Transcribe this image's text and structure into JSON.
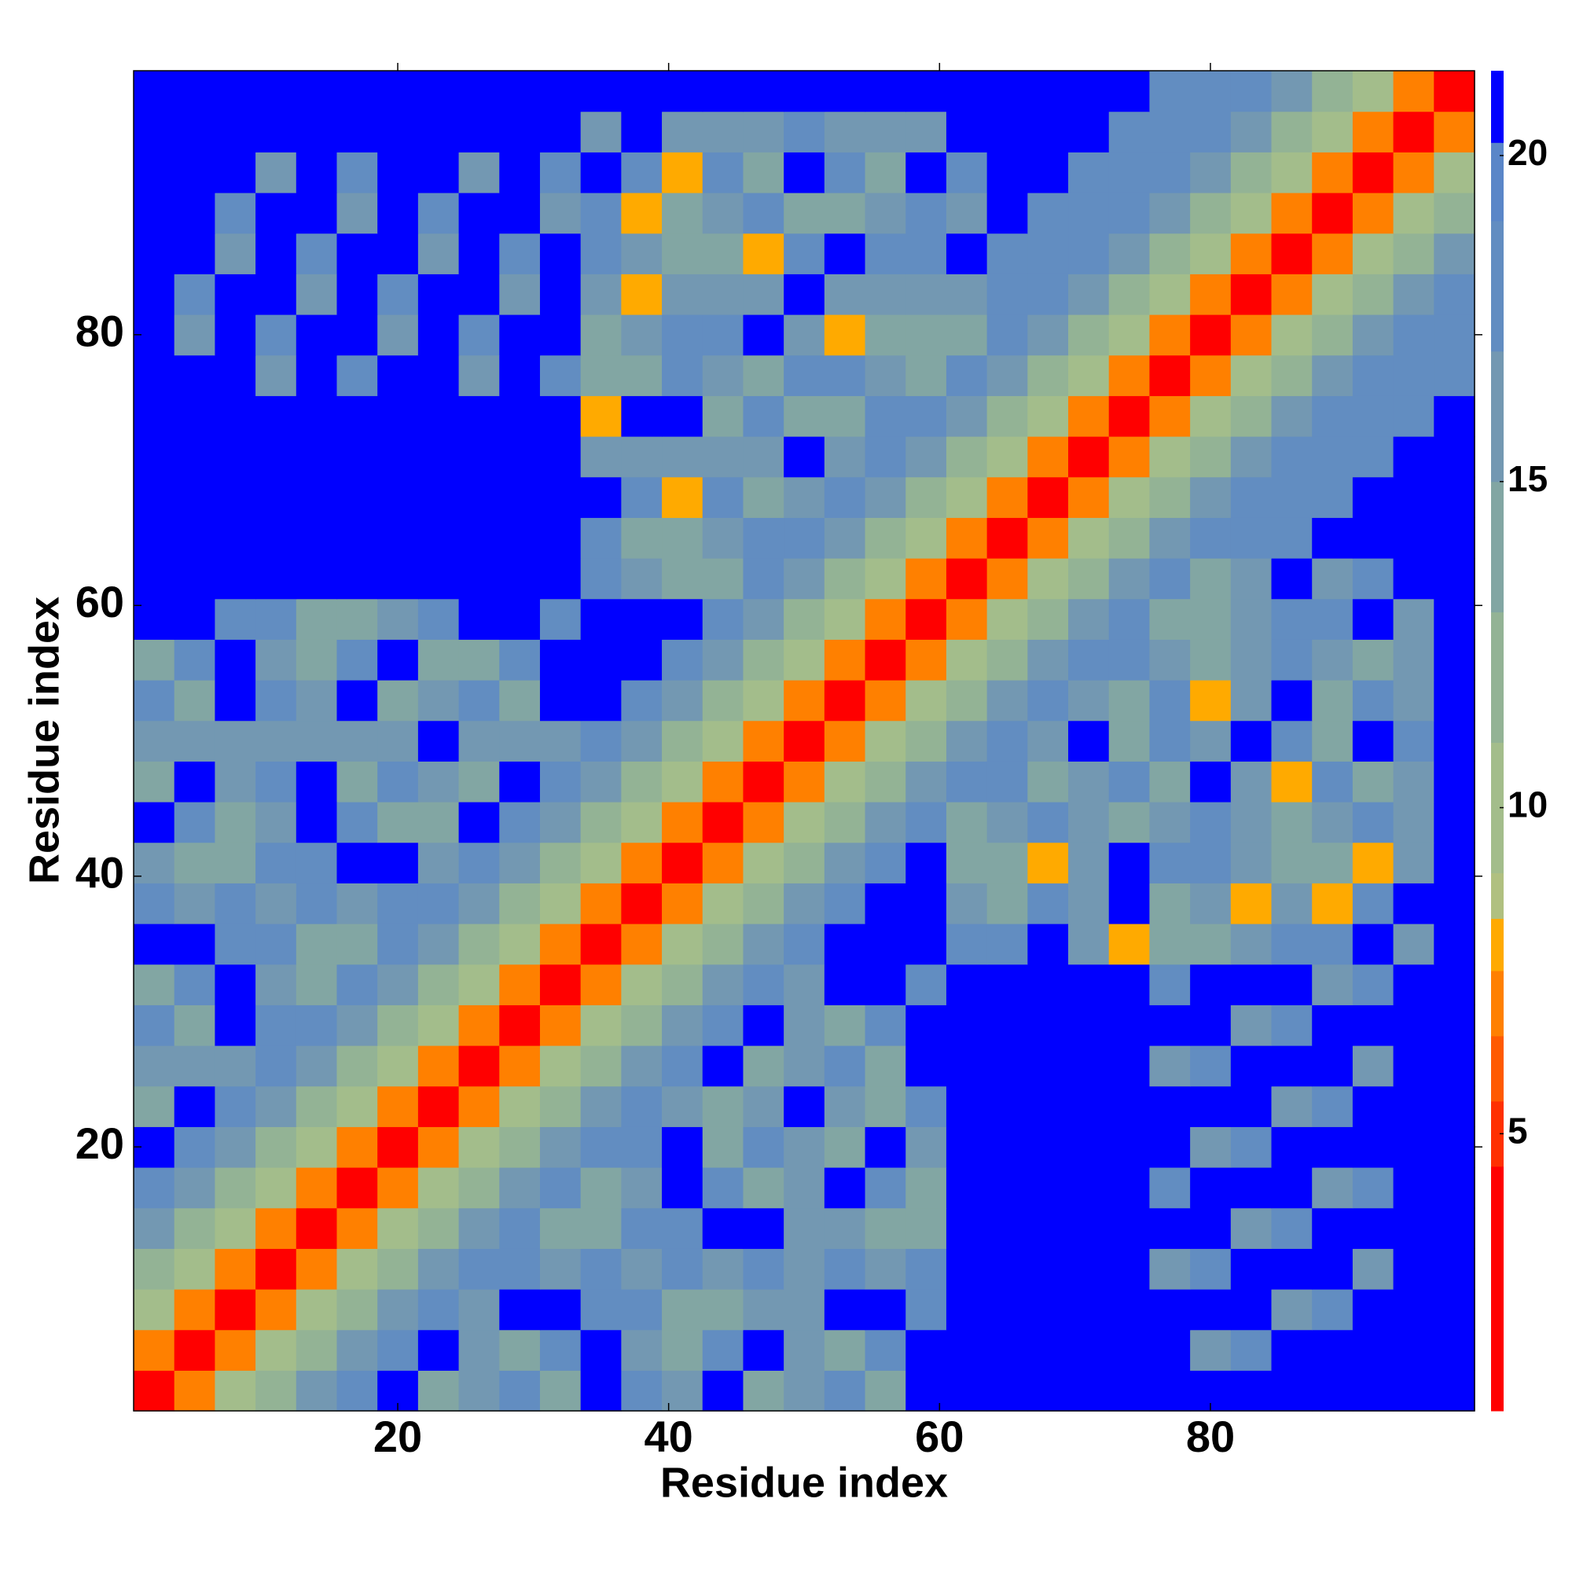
{
  "chart_data": {
    "type": "heatmap",
    "x_label": "Residue index",
    "y_label": "Residue index",
    "xlim": [
      0.5,
      99.5
    ],
    "ylim": [
      0.5,
      99.5
    ],
    "xticks": [
      20,
      40,
      60,
      80
    ],
    "yticks": [
      20,
      40,
      60,
      80
    ],
    "x_edges": [
      0.5,
      3.5,
      6.5,
      9.5,
      12.5,
      15.5,
      18.5,
      21.5,
      24.5,
      27.5,
      30.5,
      33.5,
      36.5,
      39.5,
      42.5,
      45.5,
      48.5,
      51.5,
      54.5,
      57.5,
      60.5,
      63.5,
      66.5,
      69.5,
      72.5,
      75.5,
      78.5,
      81.5,
      84.5,
      87.5,
      90.5,
      93.5,
      96.5,
      99.5
    ],
    "y_edges": [
      0.5,
      3.5,
      6.5,
      9.5,
      12.5,
      15.5,
      18.5,
      21.5,
      24.5,
      27.5,
      30.5,
      33.5,
      36.5,
      39.5,
      42.5,
      45.5,
      48.5,
      51.5,
      54.5,
      57.5,
      60.5,
      63.5,
      66.5,
      69.5,
      72.5,
      75.5,
      78.5,
      81.5,
      84.5,
      87.5,
      90.5,
      93.5,
      96.5,
      99.5
    ],
    "clim": [
      0.75,
      21.3
    ],
    "cticks": [
      5,
      10,
      15,
      20
    ],
    "levels": [
      0.75,
      4.5,
      5.5,
      6.5,
      7.5,
      8.3,
      9,
      11,
      13,
      15,
      17,
      19,
      20.2,
      21.3
    ],
    "colors": [
      "#ff0000",
      "#ff3000",
      "#ff5a00",
      "#ff8000",
      "#ffaa00",
      "#b0c080",
      "#a3bd8b",
      "#93b395",
      "#82a6a3",
      "#7398b2",
      "#628dc1",
      "#5a86c8",
      "#0000ff"
    ],
    "values": [
      [
        4,
        7,
        10,
        12,
        16,
        18,
        21,
        14,
        16,
        18,
        14,
        21,
        18,
        16,
        21,
        14,
        16,
        18,
        14,
        21,
        21,
        21,
        21,
        21,
        21,
        21,
        21,
        21,
        21,
        21,
        21,
        21,
        21
      ],
      [
        7,
        4,
        7,
        10,
        12,
        16,
        18,
        21,
        16,
        14,
        18,
        21,
        16,
        14,
        18,
        21,
        16,
        14,
        18,
        21,
        21,
        21,
        21,
        21,
        21,
        21,
        16,
        18,
        21,
        21,
        21,
        21,
        21
      ],
      [
        10,
        7,
        4,
        7,
        10,
        12,
        16,
        18,
        16,
        21,
        21,
        18,
        18,
        14,
        14,
        16,
        16,
        21,
        21,
        18,
        21,
        21,
        21,
        21,
        21,
        21,
        21,
        21,
        16,
        18,
        21,
        21,
        21
      ],
      [
        12,
        10,
        7,
        4,
        7,
        10,
        12,
        16,
        18,
        18,
        16,
        18,
        16,
        18,
        16,
        18,
        16,
        18,
        16,
        18,
        21,
        21,
        21,
        21,
        21,
        16,
        18,
        21,
        21,
        21,
        16,
        21,
        21
      ],
      [
        16,
        12,
        10,
        7,
        4,
        7,
        10,
        12,
        16,
        18,
        14,
        14,
        18,
        18,
        21,
        21,
        16,
        16,
        14,
        14,
        21,
        21,
        21,
        21,
        21,
        21,
        21,
        16,
        18,
        21,
        21,
        21,
        21
      ],
      [
        18,
        16,
        12,
        10,
        7,
        4,
        7,
        10,
        12,
        16,
        18,
        14,
        16,
        21,
        18,
        14,
        16,
        21,
        18,
        14,
        21,
        21,
        21,
        21,
        21,
        18,
        21,
        21,
        21,
        16,
        18,
        21,
        21
      ],
      [
        21,
        18,
        16,
        12,
        10,
        7,
        4,
        7,
        10,
        12,
        16,
        18,
        18,
        21,
        14,
        18,
        16,
        14,
        21,
        16,
        21,
        21,
        21,
        21,
        21,
        21,
        16,
        18,
        21,
        21,
        21,
        21,
        21
      ],
      [
        14,
        21,
        18,
        16,
        12,
        10,
        7,
        4,
        7,
        10,
        12,
        16,
        18,
        16,
        14,
        16,
        21,
        16,
        14,
        18,
        21,
        21,
        21,
        21,
        21,
        21,
        21,
        21,
        16,
        18,
        21,
        21,
        21
      ],
      [
        16,
        16,
        16,
        18,
        16,
        12,
        10,
        7,
        4,
        7,
        10,
        12,
        16,
        18,
        21,
        14,
        16,
        18,
        14,
        21,
        21,
        21,
        21,
        21,
        21,
        16,
        18,
        21,
        21,
        21,
        16,
        21,
        21
      ],
      [
        18,
        14,
        21,
        18,
        18,
        16,
        12,
        10,
        7,
        4,
        7,
        10,
        12,
        16,
        18,
        21,
        16,
        14,
        18,
        21,
        21,
        21,
        21,
        21,
        21,
        21,
        21,
        16,
        18,
        21,
        21,
        21,
        21
      ],
      [
        14,
        18,
        21,
        16,
        14,
        18,
        16,
        12,
        10,
        7,
        4,
        7,
        10,
        12,
        16,
        18,
        16,
        21,
        21,
        18,
        21,
        21,
        21,
        21,
        21,
        18,
        21,
        21,
        21,
        16,
        18,
        21,
        21
      ],
      [
        21,
        21,
        18,
        18,
        14,
        14,
        18,
        16,
        12,
        10,
        7,
        4,
        7,
        10,
        12,
        16,
        18,
        21,
        21,
        21,
        18,
        18,
        21,
        16,
        8,
        14,
        14,
        16,
        18,
        18,
        21,
        16,
        21
      ],
      [
        18,
        16,
        18,
        16,
        18,
        16,
        18,
        18,
        16,
        12,
        10,
        7,
        4,
        7,
        10,
        12,
        16,
        18,
        21,
        21,
        16,
        14,
        18,
        16,
        21,
        14,
        16,
        8,
        16,
        8,
        18,
        21,
        21
      ],
      [
        16,
        14,
        14,
        18,
        18,
        21,
        21,
        16,
        18,
        16,
        12,
        10,
        7,
        4,
        7,
        10,
        12,
        16,
        18,
        21,
        14,
        14,
        8,
        16,
        21,
        18,
        18,
        16,
        14,
        14,
        8,
        16,
        21
      ],
      [
        21,
        18,
        14,
        16,
        21,
        18,
        14,
        14,
        21,
        18,
        16,
        12,
        10,
        7,
        4,
        7,
        10,
        12,
        16,
        18,
        14,
        16,
        18,
        16,
        14,
        16,
        18,
        16,
        14,
        16,
        18,
        16,
        21
      ],
      [
        14,
        21,
        16,
        18,
        21,
        14,
        18,
        16,
        14,
        21,
        18,
        16,
        12,
        10,
        7,
        4,
        7,
        10,
        12,
        16,
        18,
        18,
        14,
        16,
        18,
        14,
        21,
        16,
        8,
        18,
        14,
        16,
        21
      ],
      [
        16,
        16,
        16,
        16,
        16,
        16,
        16,
        21,
        16,
        16,
        16,
        18,
        16,
        12,
        10,
        7,
        4,
        7,
        10,
        12,
        16,
        18,
        16,
        21,
        14,
        18,
        16,
        21,
        18,
        14,
        21,
        18,
        21
      ],
      [
        18,
        14,
        21,
        18,
        16,
        21,
        14,
        16,
        18,
        14,
        21,
        21,
        18,
        16,
        12,
        10,
        7,
        4,
        7,
        10,
        12,
        16,
        18,
        16,
        14,
        18,
        8,
        16,
        21,
        14,
        18,
        16,
        21
      ],
      [
        14,
        18,
        21,
        16,
        14,
        18,
        21,
        14,
        14,
        18,
        21,
        21,
        21,
        18,
        16,
        12,
        10,
        7,
        4,
        7,
        10,
        12,
        16,
        18,
        18,
        16,
        14,
        16,
        18,
        16,
        14,
        16,
        21
      ],
      [
        21,
        21,
        18,
        18,
        14,
        14,
        16,
        18,
        21,
        21,
        18,
        21,
        21,
        21,
        18,
        16,
        12,
        10,
        7,
        4,
        7,
        10,
        12,
        16,
        18,
        14,
        14,
        16,
        18,
        18,
        21,
        16,
        21
      ],
      [
        21,
        21,
        21,
        21,
        21,
        21,
        21,
        21,
        21,
        21,
        21,
        18,
        16,
        14,
        14,
        18,
        16,
        12,
        10,
        7,
        4,
        7,
        10,
        12,
        16,
        18,
        14,
        16,
        21,
        16,
        18,
        21,
        21
      ],
      [
        21,
        21,
        21,
        21,
        21,
        21,
        21,
        21,
        21,
        21,
        21,
        18,
        14,
        14,
        16,
        18,
        18,
        16,
        12,
        10,
        7,
        4,
        7,
        10,
        12,
        16,
        18,
        18,
        18,
        21,
        21,
        21,
        21
      ],
      [
        21,
        21,
        21,
        21,
        21,
        21,
        21,
        21,
        21,
        21,
        21,
        21,
        18,
        8,
        18,
        14,
        16,
        18,
        16,
        12,
        10,
        7,
        4,
        7,
        10,
        12,
        16,
        18,
        18,
        18,
        21,
        21,
        21
      ],
      [
        21,
        21,
        21,
        21,
        21,
        21,
        21,
        21,
        21,
        21,
        21,
        16,
        16,
        16,
        16,
        16,
        21,
        16,
        18,
        16,
        12,
        10,
        7,
        4,
        7,
        10,
        12,
        16,
        18,
        18,
        18,
        21,
        21
      ],
      [
        21,
        21,
        21,
        21,
        21,
        21,
        21,
        21,
        21,
        21,
        21,
        8,
        21,
        21,
        14,
        18,
        14,
        14,
        18,
        18,
        16,
        12,
        10,
        7,
        4,
        7,
        10,
        12,
        16,
        18,
        18,
        18,
        21
      ],
      [
        21,
        21,
        21,
        16,
        21,
        18,
        21,
        21,
        16,
        21,
        18,
        14,
        14,
        18,
        16,
        14,
        18,
        18,
        16,
        14,
        18,
        16,
        12,
        10,
        7,
        4,
        7,
        10,
        12,
        16,
        18,
        18,
        18
      ],
      [
        21,
        16,
        21,
        18,
        21,
        21,
        16,
        21,
        18,
        21,
        21,
        14,
        16,
        18,
        18,
        21,
        16,
        8,
        14,
        14,
        14,
        18,
        16,
        12,
        10,
        7,
        4,
        7,
        10,
        12,
        16,
        18,
        18
      ],
      [
        21,
        18,
        21,
        21,
        16,
        21,
        18,
        21,
        21,
        16,
        21,
        16,
        8,
        16,
        16,
        16,
        21,
        16,
        16,
        16,
        16,
        18,
        18,
        16,
        12,
        10,
        7,
        4,
        7,
        10,
        12,
        16,
        18
      ],
      [
        21,
        21,
        16,
        21,
        18,
        21,
        21,
        16,
        21,
        18,
        21,
        18,
        16,
        14,
        14,
        8,
        18,
        21,
        18,
        18,
        21,
        18,
        18,
        18,
        16,
        12,
        10,
        7,
        4,
        7,
        10,
        12,
        16
      ],
      [
        21,
        21,
        18,
        21,
        21,
        16,
        21,
        18,
        21,
        21,
        16,
        18,
        8,
        14,
        16,
        18,
        14,
        14,
        16,
        18,
        16,
        21,
        18,
        18,
        18,
        16,
        12,
        10,
        7,
        4,
        7,
        10,
        12
      ],
      [
        21,
        21,
        21,
        16,
        21,
        18,
        21,
        21,
        16,
        21,
        18,
        21,
        18,
        8,
        18,
        14,
        21,
        18,
        14,
        21,
        18,
        21,
        21,
        18,
        18,
        18,
        16,
        12,
        10,
        7,
        4,
        7,
        10
      ],
      [
        21,
        21,
        21,
        21,
        21,
        21,
        21,
        21,
        21,
        21,
        21,
        16,
        21,
        16,
        16,
        16,
        18,
        16,
        16,
        16,
        21,
        21,
        21,
        21,
        18,
        18,
        18,
        16,
        12,
        10,
        7,
        4,
        7
      ],
      [
        21,
        21,
        21,
        21,
        21,
        21,
        21,
        21,
        21,
        21,
        21,
        21,
        21,
        21,
        21,
        21,
        21,
        21,
        21,
        21,
        21,
        21,
        21,
        21,
        21,
        18,
        18,
        18,
        16,
        12,
        10,
        7,
        4
      ]
    ]
  }
}
